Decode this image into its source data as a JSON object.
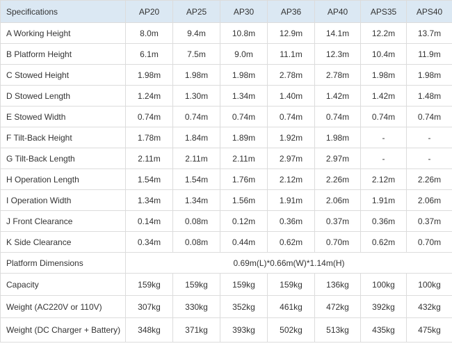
{
  "table": {
    "headers": [
      "Specifications",
      "AP20",
      "AP25",
      "AP30",
      "AP36",
      "AP40",
      "APS35",
      "APS40"
    ],
    "rows": [
      {
        "label": "A Working Height",
        "values": [
          "8.0m",
          "9.4m",
          "10.8m",
          "12.9m",
          "14.1m",
          "12.2m",
          "13.7m"
        ]
      },
      {
        "label": "B Platform Height",
        "values": [
          "6.1m",
          "7.5m",
          "9.0m",
          "11.1m",
          "12.3m",
          "10.4m",
          "11.9m"
        ]
      },
      {
        "label": "C Stowed Height",
        "values": [
          "1.98m",
          "1.98m",
          "1.98m",
          "2.78m",
          "2.78m",
          "1.98m",
          "1.98m"
        ]
      },
      {
        "label": "D Stowed Length",
        "values": [
          "1.24m",
          "1.30m",
          "1.34m",
          "1.40m",
          "1.42m",
          "1.42m",
          "1.48m"
        ]
      },
      {
        "label": "E Stowed Width",
        "values": [
          "0.74m",
          "0.74m",
          "0.74m",
          "0.74m",
          "0.74m",
          "0.74m",
          "0.74m"
        ]
      },
      {
        "label": "F Tilt-Back Height",
        "values": [
          "1.78m",
          "1.84m",
          "1.89m",
          "1.92m",
          "1.98m",
          "-",
          "-"
        ]
      },
      {
        "label": "G Tilt-Back Length",
        "values": [
          "2.11m",
          "2.11m",
          "2.11m",
          "2.97m",
          "2.97m",
          "-",
          "-"
        ]
      },
      {
        "label": "H Operation Length",
        "values": [
          "1.54m",
          "1.54m",
          "1.76m",
          "2.12m",
          "2.26m",
          "2.12m",
          "2.26m"
        ]
      },
      {
        "label": "I Operation Width",
        "values": [
          "1.34m",
          "1.34m",
          "1.56m",
          "1.91m",
          "2.06m",
          "1.91m",
          "2.06m"
        ]
      },
      {
        "label": "J Front Clearance",
        "values": [
          "0.14m",
          "0.08m",
          "0.12m",
          "0.36m",
          "0.37m",
          "0.36m",
          "0.37m"
        ]
      },
      {
        "label": "K Side Clearance",
        "values": [
          "0.34m",
          "0.08m",
          "0.44m",
          "0.62m",
          "0.70m",
          "0.62m",
          "0.70m"
        ]
      }
    ],
    "platform_dimensions": {
      "label": "Platform Dimensions",
      "value": "0.69m(L)*0.66m(W)*1.14m(H)"
    },
    "bottom_rows": [
      {
        "label": "Capacity",
        "values": [
          "159kg",
          "159kg",
          "159kg",
          "159kg",
          "136kg",
          "100kg",
          "100kg"
        ]
      },
      {
        "label": "Weight (AC220V or 110V)",
        "values": [
          "307kg",
          "330kg",
          "352kg",
          "461kg",
          "472kg",
          "392kg",
          "432kg"
        ]
      },
      {
        "label": "Weight (DC Charger + Battery)",
        "values": [
          "348kg",
          "371kg",
          "393kg",
          "502kg",
          "513kg",
          "435kg",
          "475kg"
        ]
      }
    ]
  },
  "colors": {
    "header_background": "#dbe8f3",
    "border": "#dcdcdc",
    "text": "#333333"
  }
}
